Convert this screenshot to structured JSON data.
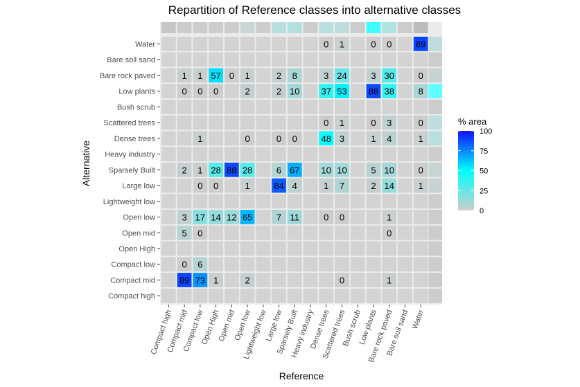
{
  "chart_data": {
    "type": "heatmap",
    "title": "Repartition of Reference classes into alternative classes",
    "xlabel": "Reference",
    "ylabel": "Alternative",
    "x_categories": [
      "Compact high",
      "Compact mid",
      "Compact low",
      "Open High",
      "Open mid",
      "Open low",
      "Lightweight low",
      "Large low",
      "Sparsely Built",
      "Heavy industry",
      "Dense trees",
      "Scattered trees",
      "Bush scrub",
      "Low plants",
      "Bare rock paved",
      "Bare soil sand",
      "Water"
    ],
    "y_categories": [
      "Water",
      "Bare soil sand",
      "Bare rock paved",
      "Low plants",
      "Bush scrub",
      "Scattered trees",
      "Dense trees",
      "Heavy industry",
      "Sparsely Built",
      "Large low",
      "Lightweight low",
      "Open low",
      "Open mid",
      "Open High",
      "Compact low",
      "Compact mid",
      "Compact high"
    ],
    "cells": [
      {
        "x": "Dense trees",
        "y": "Water",
        "value": 0
      },
      {
        "x": "Scattered trees",
        "y": "Water",
        "value": 1
      },
      {
        "x": "Low plants",
        "y": "Water",
        "value": 0
      },
      {
        "x": "Bare rock paved",
        "y": "Water",
        "value": 0
      },
      {
        "x": "Water",
        "y": "Water",
        "value": 89
      },
      {
        "x": "Compact mid",
        "y": "Bare rock paved",
        "value": 1
      },
      {
        "x": "Compact low",
        "y": "Bare rock paved",
        "value": 1
      },
      {
        "x": "Open High",
        "y": "Bare rock paved",
        "value": 57
      },
      {
        "x": "Open mid",
        "y": "Bare rock paved",
        "value": 0
      },
      {
        "x": "Open low",
        "y": "Bare rock paved",
        "value": 1
      },
      {
        "x": "Large low",
        "y": "Bare rock paved",
        "value": 2
      },
      {
        "x": "Sparsely Built",
        "y": "Bare rock paved",
        "value": 8
      },
      {
        "x": "Dense trees",
        "y": "Bare rock paved",
        "value": 3
      },
      {
        "x": "Scattered trees",
        "y": "Bare rock paved",
        "value": 24
      },
      {
        "x": "Low plants",
        "y": "Bare rock paved",
        "value": 3
      },
      {
        "x": "Bare rock paved",
        "y": "Bare rock paved",
        "value": 30
      },
      {
        "x": "Water",
        "y": "Bare rock paved",
        "value": 0
      },
      {
        "x": "Compact mid",
        "y": "Low plants",
        "value": 0
      },
      {
        "x": "Compact low",
        "y": "Low plants",
        "value": 0
      },
      {
        "x": "Open High",
        "y": "Low plants",
        "value": 0
      },
      {
        "x": "Open low",
        "y": "Low plants",
        "value": 2
      },
      {
        "x": "Large low",
        "y": "Low plants",
        "value": 2
      },
      {
        "x": "Sparsely Built",
        "y": "Low plants",
        "value": 10
      },
      {
        "x": "Dense trees",
        "y": "Low plants",
        "value": 37
      },
      {
        "x": "Scattered trees",
        "y": "Low plants",
        "value": 53
      },
      {
        "x": "Low plants",
        "y": "Low plants",
        "value": 88
      },
      {
        "x": "Bare rock paved",
        "y": "Low plants",
        "value": 38
      },
      {
        "x": "Water",
        "y": "Low plants",
        "value": 8
      },
      {
        "x": "Dense trees",
        "y": "Scattered trees",
        "value": 0
      },
      {
        "x": "Scattered trees",
        "y": "Scattered trees",
        "value": 1
      },
      {
        "x": "Low plants",
        "y": "Scattered trees",
        "value": 0
      },
      {
        "x": "Bare rock paved",
        "y": "Scattered trees",
        "value": 3
      },
      {
        "x": "Water",
        "y": "Scattered trees",
        "value": 0
      },
      {
        "x": "Compact low",
        "y": "Dense trees",
        "value": 1
      },
      {
        "x": "Open low",
        "y": "Dense trees",
        "value": 0
      },
      {
        "x": "Large low",
        "y": "Dense trees",
        "value": 0
      },
      {
        "x": "Sparsely Built",
        "y": "Dense trees",
        "value": 0
      },
      {
        "x": "Dense trees",
        "y": "Dense trees",
        "value": 48
      },
      {
        "x": "Scattered trees",
        "y": "Dense trees",
        "value": 3
      },
      {
        "x": "Low plants",
        "y": "Dense trees",
        "value": 1
      },
      {
        "x": "Bare rock paved",
        "y": "Dense trees",
        "value": 4
      },
      {
        "x": "Water",
        "y": "Dense trees",
        "value": 1
      },
      {
        "x": "Compact mid",
        "y": "Sparsely Built",
        "value": 2
      },
      {
        "x": "Compact low",
        "y": "Sparsely Built",
        "value": 1
      },
      {
        "x": "Open High",
        "y": "Sparsely Built",
        "value": 28
      },
      {
        "x": "Open mid",
        "y": "Sparsely Built",
        "value": 88
      },
      {
        "x": "Open low",
        "y": "Sparsely Built",
        "value": 28
      },
      {
        "x": "Large low",
        "y": "Sparsely Built",
        "value": 6
      },
      {
        "x": "Sparsely Built",
        "y": "Sparsely Built",
        "value": 67
      },
      {
        "x": "Dense trees",
        "y": "Sparsely Built",
        "value": 10
      },
      {
        "x": "Scattered trees",
        "y": "Sparsely Built",
        "value": 10
      },
      {
        "x": "Low plants",
        "y": "Sparsely Built",
        "value": 5
      },
      {
        "x": "Bare rock paved",
        "y": "Sparsely Built",
        "value": 10
      },
      {
        "x": "Water",
        "y": "Sparsely Built",
        "value": 0
      },
      {
        "x": "Compact low",
        "y": "Large low",
        "value": 0
      },
      {
        "x": "Open High",
        "y": "Large low",
        "value": 0
      },
      {
        "x": "Open low",
        "y": "Large low",
        "value": 1
      },
      {
        "x": "Large low",
        "y": "Large low",
        "value": 84
      },
      {
        "x": "Sparsely Built",
        "y": "Large low",
        "value": 4
      },
      {
        "x": "Dense trees",
        "y": "Large low",
        "value": 1
      },
      {
        "x": "Scattered trees",
        "y": "Large low",
        "value": 7
      },
      {
        "x": "Low plants",
        "y": "Large low",
        "value": 2
      },
      {
        "x": "Bare rock paved",
        "y": "Large low",
        "value": 14
      },
      {
        "x": "Water",
        "y": "Large low",
        "value": 1
      },
      {
        "x": "Compact mid",
        "y": "Open low",
        "value": 3
      },
      {
        "x": "Compact low",
        "y": "Open low",
        "value": 17
      },
      {
        "x": "Open High",
        "y": "Open low",
        "value": 14
      },
      {
        "x": "Open mid",
        "y": "Open low",
        "value": 12
      },
      {
        "x": "Open low",
        "y": "Open low",
        "value": 65
      },
      {
        "x": "Large low",
        "y": "Open low",
        "value": 7
      },
      {
        "x": "Sparsely Built",
        "y": "Open low",
        "value": 11
      },
      {
        "x": "Dense trees",
        "y": "Open low",
        "value": 0
      },
      {
        "x": "Scattered trees",
        "y": "Open low",
        "value": 0
      },
      {
        "x": "Bare rock paved",
        "y": "Open low",
        "value": 1
      },
      {
        "x": "Compact mid",
        "y": "Open mid",
        "value": 5
      },
      {
        "x": "Compact low",
        "y": "Open mid",
        "value": 0
      },
      {
        "x": "Bare rock paved",
        "y": "Open mid",
        "value": 0
      },
      {
        "x": "Compact mid",
        "y": "Compact low",
        "value": 0
      },
      {
        "x": "Compact low",
        "y": "Compact low",
        "value": 6
      },
      {
        "x": "Compact mid",
        "y": "Compact mid",
        "value": 89
      },
      {
        "x": "Compact low",
        "y": "Compact mid",
        "value": 73
      },
      {
        "x": "Open High",
        "y": "Compact mid",
        "value": 1
      },
      {
        "x": "Open low",
        "y": "Compact mid",
        "value": 2
      },
      {
        "x": "Scattered trees",
        "y": "Compact mid",
        "value": 0
      },
      {
        "x": "Bare rock paved",
        "y": "Compact mid",
        "value": 1
      }
    ],
    "legend": {
      "title": "% area",
      "ticks": [
        0,
        25,
        50,
        75,
        100
      ],
      "range": [
        0,
        100
      ],
      "colors": [
        "#cdcdcd",
        "#00ffff",
        "#1010ff"
      ],
      "position": "right"
    },
    "panel_background": "#ebebeb",
    "empty_cell_color": "#d3d3d3"
  }
}
